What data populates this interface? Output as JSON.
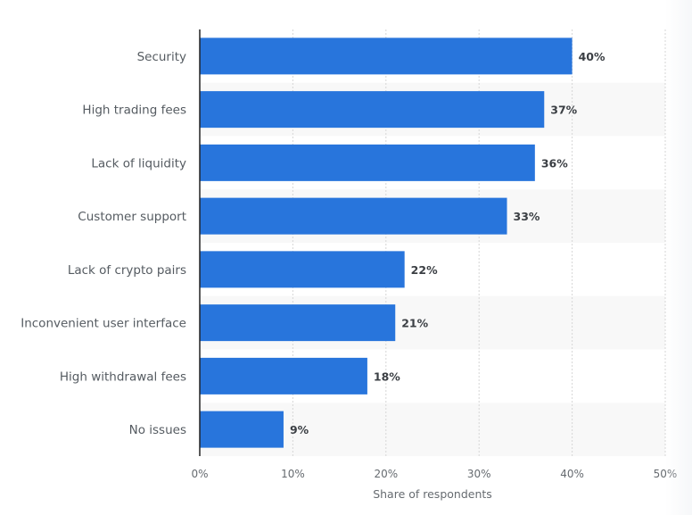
{
  "chart_data": {
    "type": "bar",
    "orientation": "horizontal",
    "title": "",
    "categories": [
      "Security",
      "High trading fees",
      "Lack of liquidity",
      "Customer support",
      "Lack of crypto pairs",
      "Inconvenient user interface",
      "High withdrawal fees",
      "No issues"
    ],
    "values": [
      40,
      37,
      36,
      33,
      22,
      21,
      18,
      9
    ],
    "value_labels": [
      "40%",
      "37%",
      "36%",
      "33%",
      "22%",
      "21%",
      "18%",
      "9%"
    ],
    "xlabel": "Share of respondents",
    "ylabel": "",
    "xlim": [
      0,
      50
    ],
    "x_ticks": [
      0,
      10,
      20,
      30,
      40,
      50
    ],
    "x_tick_labels": [
      "0%",
      "10%",
      "20%",
      "30%",
      "40%",
      "50%"
    ],
    "grid": true,
    "legend": "none"
  },
  "colors": {
    "bar": "#2875dc",
    "band": "#f8f8f8",
    "grid": "#d6d6d6",
    "axis": "#222222"
  }
}
